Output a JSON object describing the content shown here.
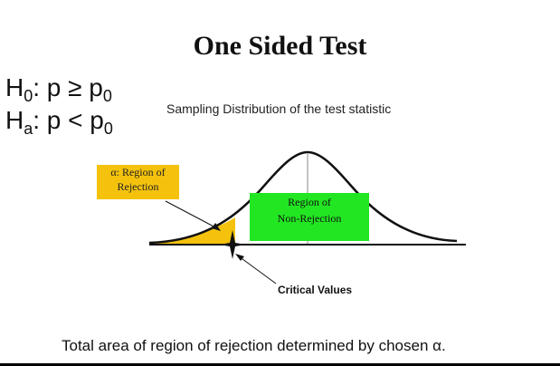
{
  "title": "One Sided Test",
  "hypotheses": {
    "null": {
      "main": "H",
      "sub": "0",
      "relation": ": p ≥ p",
      "rhs_sub": "0"
    },
    "alternative": {
      "main": "H",
      "sub": "a",
      "relation": ": p < p",
      "rhs_sub": "0"
    }
  },
  "subtitle": "Sampling Distribution of the test statistic",
  "regions": {
    "rejection": {
      "line1": "α: Region of",
      "line2": "Rejection",
      "color": "#f4c20d"
    },
    "non_rejection": {
      "line1": "Region of",
      "line2": "Non-Rejection",
      "color": "#22e622"
    }
  },
  "critical_label": "Critical Values",
  "footer": "Total area of region of rejection determined by chosen α."
}
